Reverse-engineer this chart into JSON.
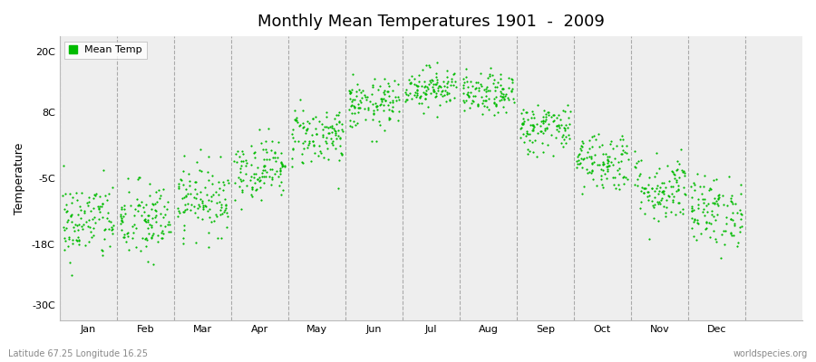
{
  "title": "Monthly Mean Temperatures 1901  -  2009",
  "ylabel": "Temperature",
  "xlabel_labels": [
    "Jan",
    "Feb",
    "Mar",
    "Apr",
    "May",
    "Jun",
    "Jul",
    "Aug",
    "Sep",
    "Oct",
    "Nov",
    "Dec"
  ],
  "yticks": [
    -30,
    -18,
    -5,
    8,
    20
  ],
  "ytick_labels": [
    "-30C",
    "-18C",
    "-5C",
    "8C",
    "20C"
  ],
  "ylim": [
    -33,
    23
  ],
  "xlim": [
    -0.5,
    12.5
  ],
  "background_color": "#ffffff",
  "plot_bg_color": "#eeeeee",
  "dot_color": "#00bb00",
  "dot_size": 2.5,
  "legend_label": "Mean Temp",
  "footer_left": "Latitude 67.25 Longitude 16.25",
  "footer_right": "worldspecies.org",
  "monthly_means": [
    -13.5,
    -13.5,
    -9.0,
    -3.0,
    3.5,
    9.5,
    13.0,
    11.5,
    5.0,
    -1.5,
    -7.0,
    -11.5
  ],
  "monthly_stds": [
    4.0,
    4.0,
    3.5,
    3.0,
    3.0,
    2.5,
    2.0,
    2.0,
    2.5,
    3.0,
    3.5,
    3.5
  ],
  "n_years": 109,
  "seed": 42,
  "title_fontsize": 13,
  "ylabel_fontsize": 9,
  "tick_fontsize": 8,
  "legend_fontsize": 8,
  "footer_fontsize": 7
}
